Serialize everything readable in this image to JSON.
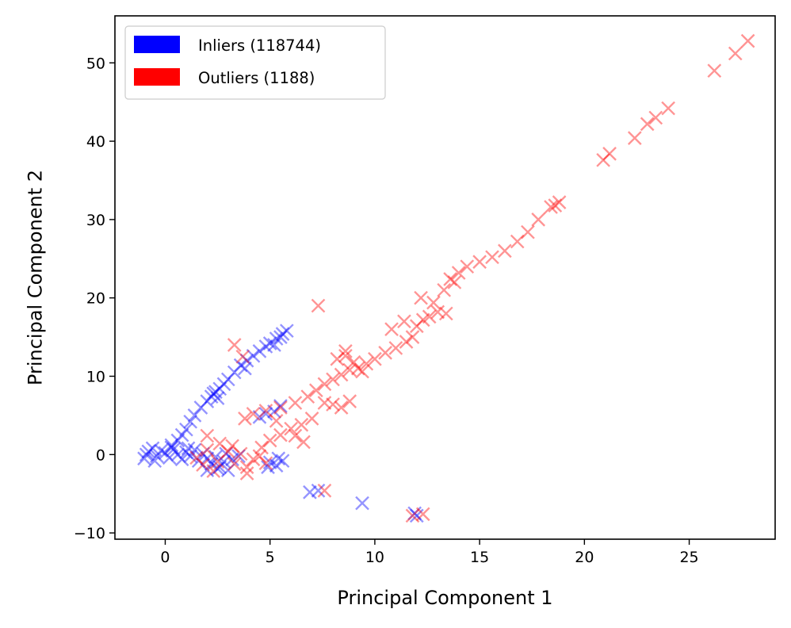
{
  "chart_data": {
    "type": "scatter",
    "title": "",
    "xlabel": "Principal Component 1",
    "ylabel": "Principal Component 2",
    "xlim": [
      -2.4,
      29.1
    ],
    "ylim": [
      -10.8,
      56.0
    ],
    "xticks": [
      0,
      5,
      10,
      15,
      20,
      25
    ],
    "yticks": [
      -10,
      0,
      10,
      20,
      30,
      40,
      50
    ],
    "grid": false,
    "legend_position": "top-left",
    "marker": "x",
    "series": [
      {
        "name": "Inliers (118744)",
        "color": "#0000ff",
        "points": [
          [
            -1.0,
            -0.5
          ],
          [
            -0.8,
            0.4
          ],
          [
            -0.6,
            0.8
          ],
          [
            -0.4,
            -0.2
          ],
          [
            -0.2,
            0.5
          ],
          [
            0.0,
            0.2
          ],
          [
            0.2,
            -0.4
          ],
          [
            0.4,
            0.7
          ],
          [
            0.6,
            0.0
          ],
          [
            0.8,
            -0.6
          ],
          [
            1.0,
            0.3
          ],
          [
            1.2,
            -0.2
          ],
          [
            1.4,
            0.6
          ],
          [
            1.6,
            -0.8
          ],
          [
            1.8,
            0.1
          ],
          [
            2.0,
            -0.5
          ],
          [
            2.2,
            -1.2
          ],
          [
            2.4,
            -0.3
          ],
          [
            2.6,
            -1.6
          ],
          [
            2.8,
            -0.9
          ],
          [
            3.0,
            -2.0
          ],
          [
            2.5,
            -1.8
          ],
          [
            2.0,
            -2.0
          ],
          [
            -0.9,
            0.0
          ],
          [
            -0.5,
            -0.8
          ],
          [
            0.3,
            0.9
          ],
          [
            1.1,
            0.8
          ],
          [
            3.2,
            -0.6
          ],
          [
            3.5,
            -0.2
          ],
          [
            2.9,
            0.1
          ],
          [
            0.3,
            1.2
          ],
          [
            0.6,
            1.8
          ],
          [
            0.8,
            2.5
          ],
          [
            1.0,
            3.2
          ],
          [
            1.2,
            4.2
          ],
          [
            1.4,
            5.0
          ],
          [
            1.7,
            6.0
          ],
          [
            2.0,
            6.8
          ],
          [
            2.2,
            7.4
          ],
          [
            2.4,
            8.0
          ],
          [
            2.5,
            7.2
          ],
          [
            2.6,
            8.4
          ],
          [
            2.8,
            9.0
          ],
          [
            3.0,
            9.6
          ],
          [
            3.3,
            10.5
          ],
          [
            3.6,
            11.4
          ],
          [
            3.9,
            12.0
          ],
          [
            4.2,
            12.6
          ],
          [
            4.5,
            13.2
          ],
          [
            4.8,
            13.8
          ],
          [
            5.0,
            14.2
          ],
          [
            5.3,
            14.8
          ],
          [
            5.6,
            15.4
          ],
          [
            5.8,
            15.8
          ],
          [
            5.5,
            15.0
          ],
          [
            5.2,
            14.0
          ],
          [
            3.8,
            11.0
          ],
          [
            2.3,
            7.8
          ],
          [
            5.0,
            -1.0
          ],
          [
            5.3,
            -1.4
          ],
          [
            5.6,
            -0.8
          ],
          [
            4.9,
            -1.6
          ],
          [
            5.4,
            -0.5
          ],
          [
            5.2,
            5.5
          ],
          [
            5.5,
            6.2
          ],
          [
            4.8,
            5.2
          ],
          [
            4.5,
            4.8
          ],
          [
            6.9,
            -4.8
          ],
          [
            7.3,
            -4.6
          ],
          [
            9.4,
            -6.2
          ],
          [
            12.0,
            -7.8
          ],
          [
            11.9,
            -7.5
          ]
        ]
      },
      {
        "name": "Outliers (1188)",
        "color": "#ff0000",
        "points": [
          [
            1.5,
            -0.4
          ],
          [
            2.0,
            0.6
          ],
          [
            2.5,
            -0.9
          ],
          [
            3.0,
            0.4
          ],
          [
            3.3,
            -1.2
          ],
          [
            3.6,
            0.1
          ],
          [
            3.9,
            -1.6
          ],
          [
            4.2,
            -0.6
          ],
          [
            4.5,
            -0.2
          ],
          [
            4.8,
            -1.1
          ],
          [
            2.0,
            2.4
          ],
          [
            2.6,
            1.4
          ],
          [
            3.2,
            1.1
          ],
          [
            3.9,
            -2.4
          ],
          [
            2.3,
            -2.1
          ],
          [
            1.8,
            -1.3
          ],
          [
            4.6,
            0.9
          ],
          [
            5.0,
            1.8
          ],
          [
            5.5,
            2.5
          ],
          [
            6.0,
            3.3
          ],
          [
            6.5,
            3.8
          ],
          [
            7.0,
            4.6
          ],
          [
            5.3,
            4.3
          ],
          [
            6.2,
            2.4
          ],
          [
            6.6,
            1.6
          ],
          [
            3.8,
            4.6
          ],
          [
            4.2,
            5.2
          ],
          [
            4.8,
            5.6
          ],
          [
            5.5,
            6.0
          ],
          [
            6.2,
            6.6
          ],
          [
            6.8,
            7.4
          ],
          [
            7.2,
            8.2
          ],
          [
            7.6,
            9.0
          ],
          [
            8.0,
            9.6
          ],
          [
            8.4,
            10.2
          ],
          [
            8.8,
            10.8
          ],
          [
            9.2,
            11.0
          ],
          [
            9.6,
            11.6
          ],
          [
            10.0,
            12.2
          ],
          [
            10.5,
            13.0
          ],
          [
            11.0,
            13.6
          ],
          [
            11.5,
            14.4
          ],
          [
            11.8,
            15.0
          ],
          [
            9.4,
            10.6
          ],
          [
            9.0,
            11.8
          ],
          [
            8.6,
            12.6
          ],
          [
            8.2,
            12.2
          ],
          [
            8.6,
            13.2
          ],
          [
            8.0,
            6.4
          ],
          [
            8.4,
            6.0
          ],
          [
            8.8,
            6.8
          ],
          [
            7.6,
            6.6
          ],
          [
            12.0,
            16.4
          ],
          [
            12.3,
            17.2
          ],
          [
            12.6,
            17.6
          ],
          [
            13.0,
            18.2
          ],
          [
            13.4,
            18.0
          ],
          [
            12.8,
            19.4
          ],
          [
            12.2,
            20.0
          ],
          [
            13.3,
            21.0
          ],
          [
            13.6,
            22.4
          ],
          [
            14.0,
            23.2
          ],
          [
            13.8,
            22.0
          ],
          [
            11.4,
            17.0
          ],
          [
            10.8,
            16.0
          ],
          [
            14.4,
            24.0
          ],
          [
            15.0,
            24.6
          ],
          [
            15.6,
            25.2
          ],
          [
            16.2,
            26.0
          ],
          [
            16.8,
            27.2
          ],
          [
            17.3,
            28.4
          ],
          [
            17.8,
            30.0
          ],
          [
            18.4,
            31.6
          ],
          [
            18.8,
            32.2
          ],
          [
            18.6,
            31.8
          ],
          [
            20.9,
            37.6
          ],
          [
            21.2,
            38.4
          ],
          [
            22.4,
            40.4
          ],
          [
            23.0,
            42.2
          ],
          [
            23.4,
            43.0
          ],
          [
            24.0,
            44.2
          ],
          [
            26.2,
            49.0
          ],
          [
            27.2,
            51.2
          ],
          [
            27.8,
            52.8
          ],
          [
            7.3,
            19.0
          ],
          [
            3.3,
            14.0
          ],
          [
            3.7,
            12.5
          ],
          [
            7.6,
            -4.6
          ],
          [
            11.8,
            -7.8
          ],
          [
            12.3,
            -7.6
          ]
        ]
      }
    ]
  }
}
